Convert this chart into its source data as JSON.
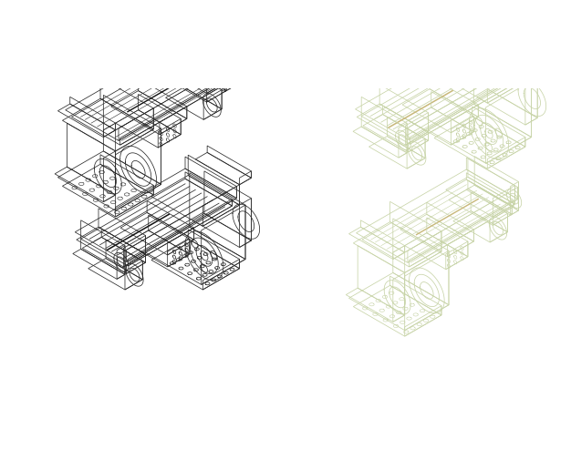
{
  "bg_left": "#ffffff",
  "bg_right": "#37404f",
  "line_dark": "#2a2a2a",
  "line_light": "#c8d4a8",
  "accent_dark": "#c8b87a",
  "accent_white": "#111111",
  "fig_width": 6.26,
  "fig_height": 5.06,
  "dpi": 100
}
